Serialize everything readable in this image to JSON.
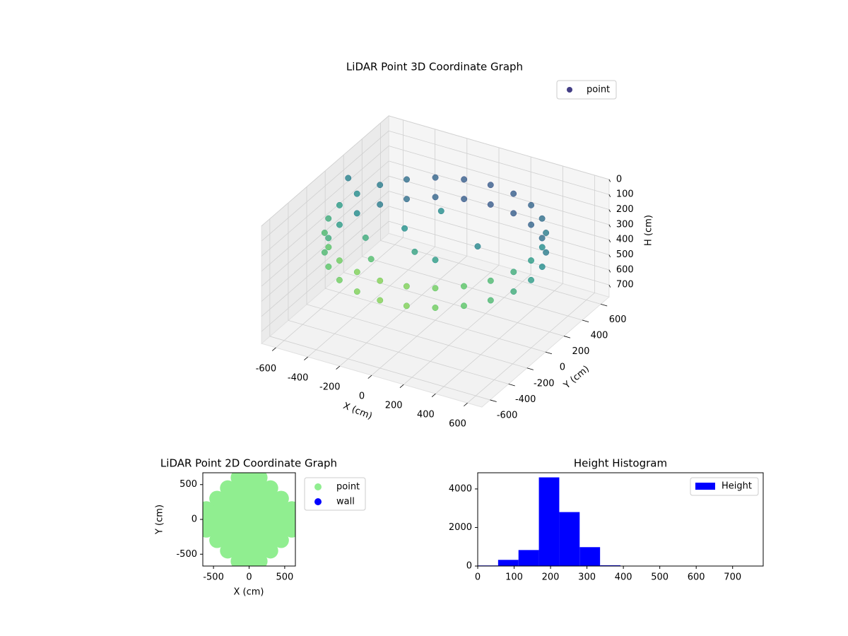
{
  "chart_data": [
    {
      "type": "scatter3d",
      "title": "LiDAR Point 3D Coordinate Graph",
      "xlabel": "X (cm)",
      "ylabel": "Y (cm)",
      "zlabel": "H (cm)",
      "series": [
        {
          "name": "point",
          "color": "#433e85",
          "x": [
            600,
            580,
            520,
            424,
            300,
            155,
            0,
            -155,
            -300,
            -424,
            -520,
            -580,
            -600,
            -580,
            -520,
            -424,
            -300,
            -155,
            0,
            155,
            300,
            424,
            520,
            580,
            600,
            580,
            520,
            424,
            300,
            155,
            0,
            -155,
            -300,
            -424,
            -520,
            -580,
            -600,
            -580,
            -520,
            -424,
            -300,
            -155,
            0,
            155,
            300,
            424,
            520,
            580,
            -100,
            -250,
            0,
            150,
            -350,
            -200,
            -50,
            -690
          ],
          "y": [
            0,
            155,
            300,
            424,
            520,
            580,
            600,
            580,
            520,
            424,
            300,
            155,
            0,
            -155,
            -300,
            -424,
            -520,
            -580,
            -600,
            -580,
            -520,
            -424,
            -300,
            -155,
            0,
            155,
            300,
            424,
            520,
            580,
            600,
            580,
            520,
            424,
            300,
            155,
            0,
            -155,
            -300,
            -424,
            -520,
            -580,
            -600,
            -580,
            -520,
            -424,
            -300,
            -155,
            -50,
            100,
            0,
            200,
            -150,
            -350,
            150,
            250
          ],
          "z": [
            200,
            200,
            200,
            200,
            200,
            200,
            200,
            200,
            200,
            200,
            200,
            200,
            200,
            200,
            200,
            200,
            200,
            200,
            200,
            200,
            200,
            200,
            200,
            200,
            330,
            330,
            330,
            330,
            330,
            330,
            330,
            330,
            330,
            330,
            330,
            330,
            330,
            330,
            330,
            330,
            330,
            330,
            330,
            330,
            330,
            330,
            330,
            330,
            330,
            300,
            380,
            350,
            260,
            250,
            150,
            180
          ]
        }
      ],
      "colormap": "viridis",
      "xlim": [
        -690,
        690
      ],
      "ylim": [
        -690,
        690
      ],
      "zlim": [
        0,
        780
      ],
      "zinverted": true,
      "xticks": [
        -600,
        -400,
        -200,
        0,
        200,
        400,
        600
      ],
      "yticks": [
        -600,
        -400,
        -200,
        0,
        200,
        400,
        600
      ],
      "zticks": [
        0,
        100,
        200,
        300,
        400,
        500,
        600,
        700
      ],
      "grid": true,
      "legend": "upper right"
    },
    {
      "type": "scatter",
      "title": "LiDAR Point 2D Coordinate Graph",
      "xlabel": "X (cm)",
      "ylabel": "Y (cm)",
      "series": [
        {
          "name": "point",
          "color": "#90ee90",
          "x": [
            -600,
            -600,
            -600,
            -450,
            -450,
            -450,
            -450,
            -450,
            -300,
            -300,
            -300,
            -300,
            -300,
            -300,
            -300,
            -150,
            -150,
            -150,
            -150,
            -150,
            -150,
            -150,
            -150,
            -150,
            0,
            0,
            0,
            0,
            0,
            0,
            0,
            0,
            0,
            150,
            150,
            150,
            150,
            150,
            150,
            150,
            150,
            150,
            300,
            300,
            300,
            300,
            300,
            300,
            300,
            450,
            450,
            450,
            450,
            450,
            600,
            600,
            600
          ],
          "y": [
            -150,
            0,
            150,
            -300,
            -150,
            0,
            150,
            300,
            -450,
            -300,
            -150,
            0,
            150,
            300,
            450,
            -600,
            -450,
            -300,
            -150,
            0,
            150,
            300,
            450,
            600,
            -600,
            -450,
            -300,
            -150,
            0,
            150,
            300,
            450,
            600,
            -600,
            -450,
            -300,
            -150,
            0,
            150,
            300,
            450,
            600,
            -450,
            -300,
            -150,
            0,
            150,
            300,
            450,
            -300,
            -150,
            0,
            150,
            300,
            -150,
            0,
            150
          ]
        },
        {
          "name": "wall",
          "color": "#0000ff",
          "x": [],
          "y": []
        }
      ],
      "xlim": [
        -650,
        650
      ],
      "ylim": [
        -670,
        670
      ],
      "xticks": [
        -500,
        0,
        500
      ],
      "yticks": [
        -500,
        0,
        500
      ],
      "legend": "outside right"
    },
    {
      "type": "histogram",
      "title": "Height Histogram",
      "bins": [
        0,
        56,
        112,
        168,
        224,
        280,
        336,
        392,
        448,
        504,
        560,
        616,
        672,
        728,
        784
      ],
      "series": [
        {
          "name": "Height",
          "color": "#0000ff",
          "values": [
            30,
            320,
            830,
            4600,
            2800,
            980,
            40,
            5,
            2,
            1,
            1,
            1,
            1,
            2
          ]
        }
      ],
      "xlim": [
        0,
        784
      ],
      "ylim": [
        0,
        4840
      ],
      "xticks": [
        0,
        100,
        200,
        300,
        400,
        500,
        600,
        700
      ],
      "yticks": [
        0,
        2000,
        4000
      ],
      "legend": "upper right"
    }
  ]
}
